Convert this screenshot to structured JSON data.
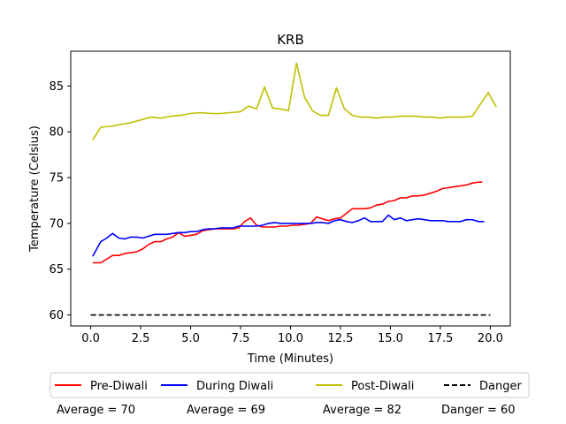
{
  "chart_data": {
    "type": "line",
    "title": "KRB",
    "xlabel": "Time (Minutes)",
    "ylabel": "Temperature (Celsius)",
    "xlim": [
      -1.0,
      21.0
    ],
    "ylim": [
      58.8,
      88.8
    ],
    "xticks": [
      0.0,
      2.5,
      5.0,
      7.5,
      10.0,
      12.5,
      15.0,
      17.5,
      20.0
    ],
    "xtick_labels": [
      "0.0",
      "2.5",
      "5.0",
      "7.5",
      "10.0",
      "12.5",
      "15.0",
      "17.5",
      "20.0"
    ],
    "yticks": [
      60,
      65,
      70,
      75,
      80,
      85
    ],
    "ytick_labels": [
      "60",
      "65",
      "70",
      "75",
      "80",
      "85"
    ],
    "grid": false,
    "legend_placement": "below",
    "series": [
      {
        "name": "Pre-Diwali",
        "color": "#ff0000",
        "dash": "solid",
        "x": [
          0.1,
          0.5,
          0.8,
          1.1,
          1.4,
          1.7,
          2.0,
          2.3,
          2.6,
          2.9,
          3.2,
          3.5,
          3.8,
          4.1,
          4.4,
          4.7,
          5.0,
          5.3,
          5.6,
          5.9,
          6.2,
          6.5,
          6.8,
          7.1,
          7.4,
          7.7,
          8.0,
          8.3,
          8.6,
          8.9,
          9.2,
          9.5,
          9.8,
          10.1,
          10.4,
          10.7,
          11.0,
          11.3,
          11.6,
          11.9,
          12.2,
          12.5,
          12.8,
          13.1,
          13.4,
          13.7,
          14.0,
          14.3,
          14.6,
          14.9,
          15.2,
          15.5,
          15.8,
          16.1,
          16.4,
          16.7,
          17.0,
          17.3,
          17.6,
          17.9,
          18.2,
          18.5,
          18.8,
          19.1,
          19.4,
          19.6
        ],
        "y": [
          65.7,
          65.7,
          66.1,
          66.5,
          66.5,
          66.7,
          66.8,
          66.9,
          67.2,
          67.7,
          68.0,
          68.0,
          68.3,
          68.5,
          69.0,
          68.6,
          68.7,
          68.8,
          69.2,
          69.3,
          69.4,
          69.4,
          69.4,
          69.4,
          69.5,
          70.2,
          70.6,
          69.8,
          69.6,
          69.6,
          69.6,
          69.7,
          69.7,
          69.8,
          69.8,
          69.9,
          70.0,
          70.7,
          70.5,
          70.3,
          70.5,
          70.6,
          71.1,
          71.6,
          71.6,
          71.6,
          71.7,
          72.0,
          72.1,
          72.4,
          72.5,
          72.8,
          72.8,
          73.0,
          73.0,
          73.1,
          73.3,
          73.5,
          73.8,
          73.9,
          74.0,
          74.1,
          74.2,
          74.4,
          74.5,
          74.5
        ]
      },
      {
        "name": "During Diwali",
        "color": "#0000ff",
        "dash": "solid",
        "x": [
          0.1,
          0.5,
          0.8,
          1.1,
          1.4,
          1.7,
          2.0,
          2.3,
          2.6,
          2.9,
          3.2,
          3.5,
          3.8,
          4.1,
          4.4,
          4.7,
          5.0,
          5.3,
          5.6,
          5.9,
          6.2,
          6.5,
          6.8,
          7.1,
          7.4,
          7.7,
          8.0,
          8.3,
          8.6,
          8.9,
          9.2,
          9.5,
          9.8,
          10.1,
          10.4,
          10.7,
          11.0,
          11.3,
          11.6,
          11.9,
          12.2,
          12.5,
          12.8,
          13.1,
          13.4,
          13.7,
          14.0,
          14.3,
          14.6,
          14.9,
          15.2,
          15.5,
          15.8,
          16.1,
          16.4,
          16.7,
          17.0,
          17.3,
          17.6,
          17.9,
          18.2,
          18.5,
          18.8,
          19.1,
          19.4,
          19.7
        ],
        "y": [
          66.4,
          68.0,
          68.4,
          68.9,
          68.4,
          68.3,
          68.5,
          68.5,
          68.4,
          68.6,
          68.8,
          68.8,
          68.8,
          68.9,
          69.0,
          69.0,
          69.1,
          69.1,
          69.3,
          69.4,
          69.4,
          69.5,
          69.5,
          69.5,
          69.7,
          69.7,
          69.7,
          69.7,
          69.8,
          70.0,
          70.1,
          70.0,
          70.0,
          70.0,
          70.0,
          70.0,
          70.0,
          70.1,
          70.1,
          70.0,
          70.3,
          70.4,
          70.2,
          70.1,
          70.3,
          70.6,
          70.2,
          70.2,
          70.2,
          70.9,
          70.4,
          70.6,
          70.3,
          70.4,
          70.5,
          70.4,
          70.3,
          70.3,
          70.3,
          70.2,
          70.2,
          70.2,
          70.4,
          70.4,
          70.2,
          70.2
        ]
      },
      {
        "name": "Post-Diwali",
        "color": "#bfbf00",
        "dash": "solid",
        "x": [
          0.1,
          0.5,
          1.0,
          1.5,
          2.0,
          2.5,
          3.0,
          3.5,
          4.0,
          4.5,
          5.0,
          5.5,
          6.0,
          6.5,
          7.0,
          7.5,
          7.9,
          8.3,
          8.7,
          9.1,
          9.5,
          9.9,
          10.3,
          10.7,
          11.1,
          11.5,
          11.9,
          12.3,
          12.7,
          13.1,
          13.5,
          13.9,
          14.3,
          14.7,
          15.1,
          15.5,
          15.9,
          16.3,
          16.7,
          17.1,
          17.5,
          17.9,
          18.3,
          18.7,
          19.1,
          19.5,
          19.9,
          20.3
        ],
        "y": [
          79.1,
          80.5,
          80.6,
          80.8,
          81.0,
          81.3,
          81.6,
          81.5,
          81.7,
          81.8,
          82.0,
          82.1,
          82.0,
          82.0,
          82.1,
          82.2,
          82.8,
          82.5,
          84.9,
          82.6,
          82.5,
          82.3,
          87.5,
          83.8,
          82.3,
          81.8,
          81.8,
          84.8,
          82.5,
          81.8,
          81.6,
          81.6,
          81.5,
          81.6,
          81.6,
          81.7,
          81.7,
          81.7,
          81.6,
          81.6,
          81.5,
          81.6,
          81.6,
          81.6,
          81.7,
          83.0,
          84.3,
          82.7
        ]
      },
      {
        "name": "Danger",
        "color": "#000000",
        "dash": "dashed",
        "x": [
          0.0,
          20.0
        ],
        "y": [
          60,
          60
        ]
      }
    ],
    "averages": [
      {
        "text": "Average = 70"
      },
      {
        "text": "Average = 69"
      },
      {
        "text": "Average = 82"
      },
      {
        "text": "Danger = 60"
      }
    ]
  }
}
